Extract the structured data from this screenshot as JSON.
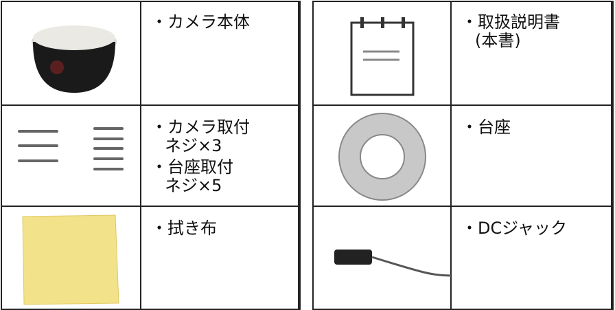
{
  "tables": [
    {
      "rows": [
        {
          "items": [
            [
              "・カメラ本体"
            ]
          ]
        },
        {
          "items": [
            [
              "・カメラ取付",
              "ネジ×3"
            ],
            [
              "・台座取付",
              "ネジ×5"
            ]
          ]
        },
        {
          "items": [
            [
              "・拭き布"
            ]
          ]
        }
      ]
    },
    {
      "rows": [
        {
          "items": [
            [
              "・取扱説明書",
              "(本書)"
            ]
          ]
        },
        {
          "items": [
            [
              "・台座"
            ]
          ]
        },
        {
          "items": [
            [
              "・DCジャック"
            ]
          ]
        }
      ]
    }
  ]
}
